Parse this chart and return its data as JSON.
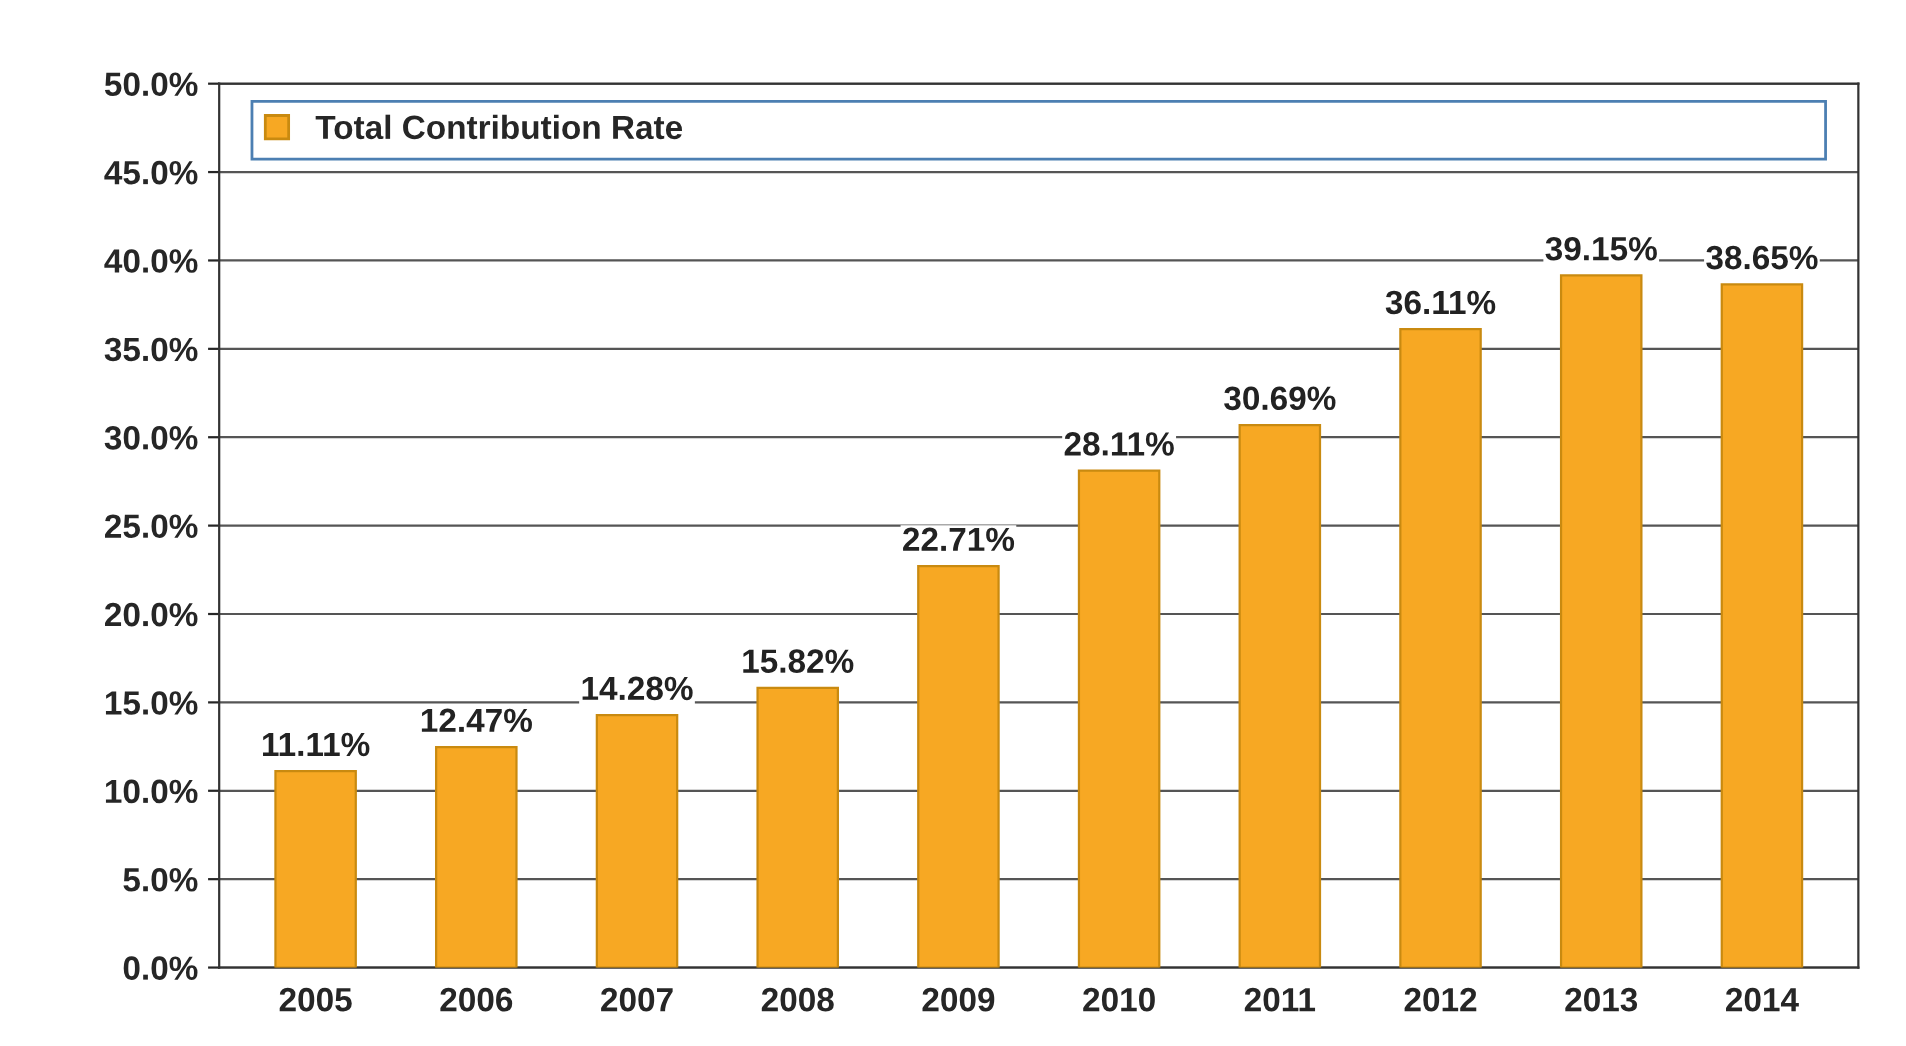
{
  "chart_data": {
    "type": "bar",
    "categories": [
      "2005",
      "2006",
      "2007",
      "2008",
      "2009",
      "2010",
      "2011",
      "2012",
      "2013",
      "2014"
    ],
    "series": [
      {
        "name": "Total Contribution Rate",
        "color": "#f7a823",
        "values": [
          11.11,
          12.47,
          14.28,
          15.82,
          22.71,
          28.11,
          30.69,
          36.11,
          39.15,
          38.65
        ],
        "value_labels": [
          "11.11%",
          "12.47%",
          "14.28%",
          "15.82%",
          "22.71%",
          "28.11%",
          "30.69%",
          "36.11%",
          "39.15%",
          "38.65%"
        ]
      }
    ],
    "ylim": [
      0,
      50
    ],
    "yticks": [
      {
        "value": 0,
        "label": "0.0%"
      },
      {
        "value": 5,
        "label": "5.0%"
      },
      {
        "value": 10,
        "label": "10.0%"
      },
      {
        "value": 15,
        "label": "15.0%"
      },
      {
        "value": 20,
        "label": "20.0%"
      },
      {
        "value": 25,
        "label": "25.0%"
      },
      {
        "value": 30,
        "label": "30.0%"
      },
      {
        "value": 35,
        "label": "35.0%"
      },
      {
        "value": 40,
        "label": "40.0%"
      },
      {
        "value": 45,
        "label": "45.0%"
      },
      {
        "value": 50,
        "label": "50.0%"
      }
    ],
    "grid": "y",
    "legend": "top"
  }
}
